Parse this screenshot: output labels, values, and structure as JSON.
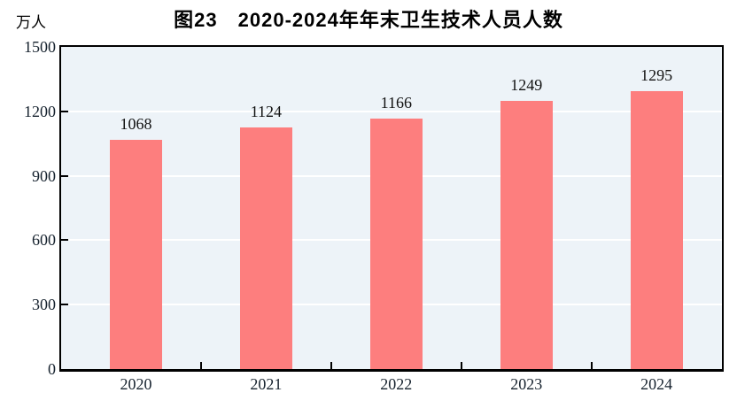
{
  "chart_data": {
    "type": "bar",
    "title": "图23　2020-2024年年末卫生技术人员人数",
    "unit_label": "万人",
    "categories": [
      "2020",
      "2021",
      "2022",
      "2023",
      "2024"
    ],
    "values": [
      1068,
      1124,
      1166,
      1249,
      1295
    ],
    "ylim": [
      0,
      1500
    ],
    "yticks": [
      0,
      300,
      600,
      900,
      1200,
      1500
    ],
    "xlabel": "",
    "ylabel": "万人",
    "grid": "horizontal",
    "legend_position": "none",
    "colors": {
      "bar_fill": "#FD7E7E",
      "plot_background": "#EDF3F8",
      "gridline": "#FFFFFF",
      "axis_frame": "#000000",
      "text": "#16222e",
      "page_background": "#FFFFFF"
    }
  }
}
